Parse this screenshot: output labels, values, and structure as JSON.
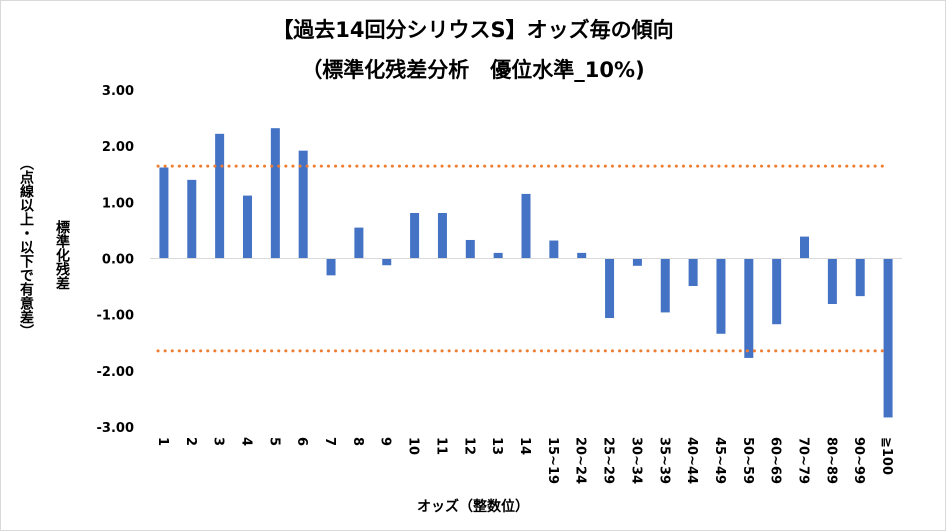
{
  "chart_data": {
    "type": "bar",
    "title": "【過去14回分シリウスS】オッズ毎の傾向",
    "subtitle": "（標準化残差分析　優位水準_10%)",
    "xlabel": "オッズ（整数位）",
    "ylabel": "標準化残差",
    "ylabel2": "（点線以上・以下で有意差）",
    "categories": [
      "1",
      "2",
      "3",
      "4",
      "5",
      "6",
      "7",
      "8",
      "9",
      "10",
      "11",
      "12",
      "13",
      "14",
      "15~19",
      "20~24",
      "25~29",
      "30~34",
      "35~39",
      "40~44",
      "45~49",
      "50~59",
      "60~69",
      "70~79",
      "80~89",
      "90~99",
      "≧100"
    ],
    "values": [
      1.62,
      1.4,
      2.22,
      1.12,
      2.32,
      1.92,
      -0.3,
      0.55,
      -0.12,
      0.81,
      0.81,
      0.33,
      0.1,
      1.15,
      0.32,
      0.1,
      -1.06,
      -0.13,
      -0.96,
      -0.49,
      -1.34,
      -1.77,
      -1.17,
      0.39,
      -0.81,
      -0.67,
      -2.83
    ],
    "thresholds": [
      1.645,
      -1.645
    ],
    "ylim": [
      -3.0,
      3.0
    ],
    "yticks": [
      "3.00",
      "2.00",
      "1.00",
      "0.00",
      "-1.00",
      "-2.00",
      "-3.00"
    ],
    "bar_color": "#4472C4",
    "threshold_color": "#ED7D31",
    "grid": true
  }
}
